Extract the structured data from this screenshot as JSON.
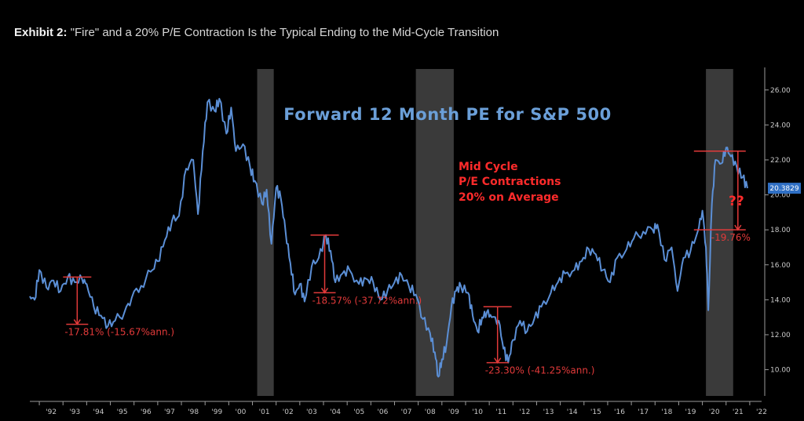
{
  "header": {
    "exhibit_label": "Exhibit 2:",
    "exhibit_text": "\"Fire\" and a 20% P/E Contraction Is the Typical Ending to the Mid-Cycle Transition"
  },
  "chart_data": {
    "type": "line",
    "title": "Forward 12 Month PE for S&P 500",
    "xlabel": "",
    "ylabel": "",
    "ylim": [
      8.5,
      27.2
    ],
    "y_ticks": [
      "10.00",
      "12.00",
      "14.00",
      "16.00",
      "18.00",
      "20.00",
      "22.00",
      "24.00",
      "26.00"
    ],
    "x_ticks": [
      "'92",
      "'93",
      "'94",
      "'95",
      "'96",
      "'97",
      "'98",
      "'99",
      "'00",
      "'01",
      "'02",
      "'03",
      "'04",
      "'05",
      "'06",
      "'07",
      "'08",
      "'09",
      "'10",
      "'11",
      "'12",
      "'13",
      "'14",
      "'15",
      "'16",
      "'17",
      "'18",
      "'19",
      "'20",
      "'21",
      "'22"
    ],
    "x_range": [
      1991.6,
      2022.5
    ],
    "grid": false,
    "colors": {
      "line": "#5b8fd6",
      "recession": "#3a3a3a",
      "annotation": "#e23a3a",
      "note": "#ff2b2b",
      "title": "#6b9fd8"
    },
    "recessions": [
      [
        2001.2,
        2001.9
      ],
      [
        2007.9,
        2009.5
      ],
      [
        2020.15,
        2021.3
      ]
    ],
    "series": [
      {
        "values": [
          [
            1991.6,
            14.2
          ],
          [
            1991.8,
            14.0
          ],
          [
            1992.0,
            15.7
          ],
          [
            1992.3,
            14.7
          ],
          [
            1992.6,
            15.1
          ],
          [
            1992.9,
            14.5
          ],
          [
            1993.2,
            15.3
          ],
          [
            1993.5,
            15.0
          ],
          [
            1993.8,
            15.2
          ],
          [
            1994.0,
            14.9
          ],
          [
            1994.3,
            13.6
          ],
          [
            1994.6,
            13.1
          ],
          [
            1994.9,
            12.5
          ],
          [
            1995.2,
            12.8
          ],
          [
            1995.6,
            13.3
          ],
          [
            1995.9,
            14.1
          ],
          [
            1996.3,
            14.8
          ],
          [
            1996.7,
            15.6
          ],
          [
            1997.0,
            16.2
          ],
          [
            1997.3,
            17.4
          ],
          [
            1997.6,
            18.5
          ],
          [
            1997.9,
            18.8
          ],
          [
            1998.2,
            21.5
          ],
          [
            1998.5,
            22.0
          ],
          [
            1998.7,
            18.9
          ],
          [
            1998.9,
            22.5
          ],
          [
            1999.1,
            25.3
          ],
          [
            1999.4,
            24.8
          ],
          [
            1999.6,
            25.5
          ],
          [
            1999.9,
            23.5
          ],
          [
            2000.1,
            25.0
          ],
          [
            2000.3,
            22.5
          ],
          [
            2000.6,
            22.9
          ],
          [
            2000.9,
            21.6
          ],
          [
            2001.1,
            20.8
          ],
          [
            2001.4,
            19.5
          ],
          [
            2001.6,
            20.3
          ],
          [
            2001.8,
            17.2
          ],
          [
            2002.0,
            20.4
          ],
          [
            2002.2,
            19.8
          ],
          [
            2002.4,
            17.9
          ],
          [
            2002.6,
            16.1
          ],
          [
            2002.8,
            14.3
          ],
          [
            2003.0,
            14.9
          ],
          [
            2003.2,
            13.9
          ],
          [
            2003.5,
            15.9
          ],
          [
            2003.8,
            16.4
          ],
          [
            2004.1,
            17.7
          ],
          [
            2004.3,
            16.8
          ],
          [
            2004.5,
            15.0
          ],
          [
            2004.8,
            15.5
          ],
          [
            2005.1,
            15.7
          ],
          [
            2005.5,
            14.9
          ],
          [
            2005.8,
            15.2
          ],
          [
            2006.1,
            15.0
          ],
          [
            2006.4,
            14.0
          ],
          [
            2006.7,
            14.5
          ],
          [
            2007.0,
            15.0
          ],
          [
            2007.3,
            15.4
          ],
          [
            2007.6,
            14.8
          ],
          [
            2007.9,
            14.3
          ],
          [
            2008.2,
            12.9
          ],
          [
            2008.5,
            12.1
          ],
          [
            2008.7,
            11.0
          ],
          [
            2008.85,
            9.6
          ],
          [
            2009.0,
            10.6
          ],
          [
            2009.2,
            11.5
          ],
          [
            2009.4,
            13.6
          ],
          [
            2009.6,
            14.5
          ],
          [
            2009.8,
            14.8
          ],
          [
            2010.1,
            14.4
          ],
          [
            2010.3,
            13.1
          ],
          [
            2010.5,
            12.2
          ],
          [
            2010.7,
            13.0
          ],
          [
            2010.9,
            13.3
          ],
          [
            2011.1,
            13.0
          ],
          [
            2011.4,
            12.8
          ],
          [
            2011.6,
            11.2
          ],
          [
            2011.8,
            10.4
          ],
          [
            2012.0,
            11.7
          ],
          [
            2012.3,
            12.8
          ],
          [
            2012.6,
            12.2
          ],
          [
            2012.9,
            12.9
          ],
          [
            2013.2,
            13.6
          ],
          [
            2013.6,
            14.4
          ],
          [
            2013.9,
            15.0
          ],
          [
            2014.2,
            15.5
          ],
          [
            2014.6,
            15.7
          ],
          [
            2014.9,
            16.2
          ],
          [
            2015.2,
            16.9
          ],
          [
            2015.5,
            16.6
          ],
          [
            2015.8,
            15.7
          ],
          [
            2016.1,
            15.0
          ],
          [
            2016.4,
            16.4
          ],
          [
            2016.8,
            16.9
          ],
          [
            2017.1,
            17.5
          ],
          [
            2017.5,
            17.9
          ],
          [
            2017.9,
            18.0
          ],
          [
            2018.1,
            18.3
          ],
          [
            2018.4,
            16.3
          ],
          [
            2018.7,
            17.0
          ],
          [
            2018.95,
            14.5
          ],
          [
            2019.2,
            16.4
          ],
          [
            2019.5,
            16.8
          ],
          [
            2019.8,
            17.9
          ],
          [
            2020.0,
            19.1
          ],
          [
            2020.15,
            17.0
          ],
          [
            2020.25,
            13.4
          ],
          [
            2020.4,
            19.5
          ],
          [
            2020.55,
            22.0
          ],
          [
            2020.8,
            21.8
          ],
          [
            2021.0,
            22.7
          ],
          [
            2021.2,
            22.2
          ],
          [
            2021.45,
            21.6
          ],
          [
            2021.7,
            21.0
          ],
          [
            2021.9,
            20.38
          ]
        ]
      }
    ],
    "last_value_label": "20.3829",
    "annotations": [
      {
        "text": "-17.81% (-15.67%ann.)",
        "x_start": 1993.6,
        "y_top": 15.3,
        "y_bottom": 12.6
      },
      {
        "text": "-18.57% (-37.72%ann.)",
        "x_start": 2004.05,
        "y_top": 17.7,
        "y_bottom": 14.4
      },
      {
        "text": "-23.30% (-41.25%ann.)",
        "x_start": 2011.35,
        "y_top": 13.6,
        "y_bottom": 10.4
      },
      {
        "text": "-19.76%",
        "x_start": 2021.3,
        "y_top": 22.5,
        "y_bottom": 18.0
      }
    ],
    "note_lines": [
      "Mid Cycle",
      "P/E Contractions",
      "20% on Average"
    ],
    "note_question": "??"
  }
}
